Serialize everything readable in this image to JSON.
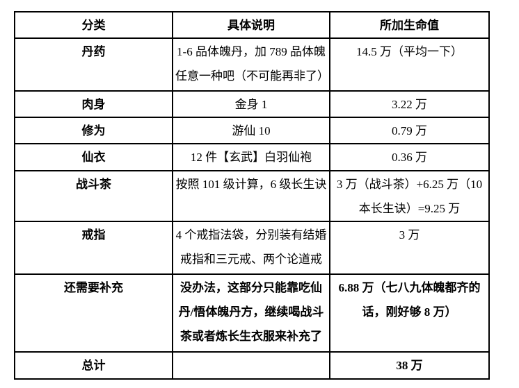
{
  "table": {
    "headers": [
      "分类",
      "具体说明",
      "所加生命值"
    ],
    "rows": [
      {
        "category": "丹药",
        "description": "1-6 品体魄丹，加 789 品体魄任意一种吧（不可能再非了）",
        "value": "14.5 万（平均一下）"
      },
      {
        "category": "肉身",
        "description": "金身 1",
        "value": "3.22 万"
      },
      {
        "category": "修为",
        "description": "游仙 10",
        "value": "0.79 万"
      },
      {
        "category": "仙衣",
        "description": "12 件【玄武】白羽仙袍",
        "value": "0.36 万"
      },
      {
        "category": "战斗茶",
        "description": "按照 101 级计算，6 级长生诀",
        "value": "3 万（战斗茶）+6.25 万（10 本长生诀）=9.25 万"
      },
      {
        "category": "戒指",
        "description": "4 个戒指法袋，分别装有结婚戒指和三元戒、两个论道戒",
        "value": "3 万"
      },
      {
        "category": "还需要补充",
        "description": "没办法，这部分只能靠吃仙丹/悟体魄丹方，继续喝战斗茶或者炼长生衣服来补充了",
        "value": "6.88 万（七八九体魄都齐的话，刚好够 8 万）"
      },
      {
        "category": "总计",
        "description": "",
        "value": "38 万"
      }
    ],
    "colors": {
      "border": "#000000",
      "text": "#000000",
      "background": "#ffffff"
    }
  }
}
